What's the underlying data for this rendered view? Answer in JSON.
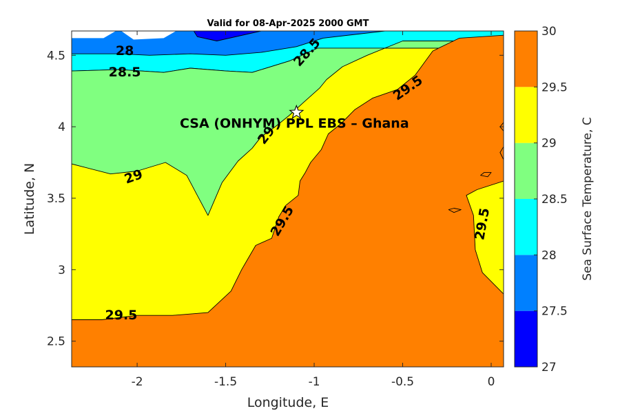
{
  "chart_data": {
    "type": "contour",
    "title": "Valid for 08-Apr-2025 2000 GMT",
    "xlabel": "Longitude, E",
    "ylabel": "Latitude, N",
    "xlim": [
      -2.37,
      0.07
    ],
    "ylim": [
      2.32,
      4.67
    ],
    "xticks": [
      "-2",
      "-1.5",
      "-1",
      "-0.5",
      "0"
    ],
    "xtick_values": [
      -2,
      -1.5,
      -1,
      -0.5,
      0
    ],
    "yticks": [
      "2.5",
      "3",
      "3.5",
      "4",
      "4.5"
    ],
    "ytick_values": [
      2.5,
      3,
      3.5,
      4,
      4.5
    ],
    "colorbar": {
      "label": "Sea Surface Temperature, C",
      "ticks": [
        "27",
        "27.5",
        "28",
        "28.5",
        "29",
        "29.5",
        "30"
      ],
      "tick_values": [
        27,
        27.5,
        28,
        28.5,
        29,
        29.5,
        30
      ],
      "levels": [
        {
          "min": 27.0,
          "max": 27.5,
          "color": "#0000ff"
        },
        {
          "min": 27.5,
          "max": 28.0,
          "color": "#0080ff"
        },
        {
          "min": 28.0,
          "max": 28.5,
          "color": "#00ffff"
        },
        {
          "min": 28.5,
          "max": 29.0,
          "color": "#80ff80"
        },
        {
          "min": 29.0,
          "max": 29.5,
          "color": "#ffff00"
        },
        {
          "min": 29.5,
          "max": 30.0,
          "color": "#ff8000"
        }
      ]
    },
    "contour_labels": [
      {
        "text": "28",
        "lon": -2.07,
        "lat": 4.53,
        "angle": 0
      },
      {
        "text": "28.5",
        "lon": -2.07,
        "lat": 4.38,
        "angle": 0
      },
      {
        "text": "28.5",
        "lon": -1.04,
        "lat": 4.52,
        "angle": -48
      },
      {
        "text": "29.5",
        "lon": -0.47,
        "lat": 4.27,
        "angle": -35
      },
      {
        "text": "29",
        "lon": -1.27,
        "lat": 3.94,
        "angle": -52
      },
      {
        "text": "29",
        "lon": -2.02,
        "lat": 3.65,
        "angle": -20
      },
      {
        "text": "29.5",
        "lon": -1.18,
        "lat": 3.34,
        "angle": -60
      },
      {
        "text": "29.5",
        "lon": -2.09,
        "lat": 2.68,
        "angle": 0
      },
      {
        "text": "29.5",
        "lon": -0.05,
        "lat": 3.32,
        "angle": -80
      }
    ],
    "site": {
      "name": "CSA (ONHYM) PPL EBS  – Ghana",
      "lon": -1.1,
      "lat": 4.1
    },
    "regions": [
      {
        "level": 28.0,
        "color": "#00ffff",
        "points": [
          [
            -2.37,
            4.67
          ],
          [
            0.07,
            4.67
          ],
          [
            0.07,
            4.55
          ],
          [
            -0.98,
            4.55
          ],
          [
            -1.14,
            4.46
          ],
          [
            -1.35,
            4.38
          ],
          [
            -1.5,
            4.39
          ],
          [
            -1.7,
            4.41
          ],
          [
            -1.85,
            4.38
          ],
          [
            -2.1,
            4.4
          ],
          [
            -2.37,
            4.39
          ]
        ]
      },
      {
        "level": 27.5,
        "color": "#0080ff",
        "points": [
          [
            -2.37,
            4.67
          ],
          [
            -0.6,
            4.67
          ],
          [
            -0.95,
            4.62
          ],
          [
            -1.1,
            4.56
          ],
          [
            -1.3,
            4.52
          ],
          [
            -1.5,
            4.5
          ],
          [
            -1.7,
            4.51
          ],
          [
            -1.93,
            4.5
          ],
          [
            -2.1,
            4.51
          ],
          [
            -2.37,
            4.51
          ]
        ]
      },
      {
        "level": 27.0,
        "color": "#0000ff",
        "points": [
          [
            -1.68,
            4.67
          ],
          [
            -1.3,
            4.67
          ],
          [
            -1.55,
            4.6
          ],
          [
            -1.66,
            4.63
          ]
        ]
      },
      {
        "level": 0,
        "color": "#ffffff",
        "points": [
          [
            -2.37,
            4.67
          ],
          [
            -2.12,
            4.67
          ],
          [
            -2.19,
            4.62
          ],
          [
            -2.37,
            4.62
          ]
        ]
      },
      {
        "level": 0,
        "color": "#ffffff",
        "points": [
          [
            -2.09,
            4.67
          ],
          [
            -1.78,
            4.67
          ],
          [
            -1.85,
            4.62
          ],
          [
            -2.02,
            4.61
          ]
        ]
      },
      {
        "level": 28.5,
        "color": "#80ff80",
        "points": [
          [
            -2.37,
            4.39
          ],
          [
            -2.1,
            4.4
          ],
          [
            -1.85,
            4.38
          ],
          [
            -1.7,
            4.41
          ],
          [
            -1.5,
            4.39
          ],
          [
            -1.35,
            4.38
          ],
          [
            -1.14,
            4.46
          ],
          [
            -0.98,
            4.55
          ],
          [
            0.07,
            4.55
          ],
          [
            0.07,
            4.6
          ],
          [
            -0.5,
            4.6
          ],
          [
            -0.7,
            4.5
          ],
          [
            -0.84,
            4.42
          ],
          [
            -0.93,
            4.33
          ],
          [
            -0.97,
            4.27
          ],
          [
            -1.06,
            4.17
          ],
          [
            -1.14,
            4.08
          ],
          [
            -1.22,
            4.0
          ],
          [
            -1.3,
            3.93
          ],
          [
            -1.35,
            3.85
          ],
          [
            -1.43,
            3.76
          ],
          [
            -1.52,
            3.61
          ],
          [
            -1.6,
            3.38
          ],
          [
            -1.66,
            3.52
          ],
          [
            -1.72,
            3.66
          ],
          [
            -1.84,
            3.75
          ],
          [
            -2.0,
            3.69
          ],
          [
            -2.15,
            3.67
          ],
          [
            -2.37,
            3.74
          ]
        ]
      },
      {
        "level": 29.5,
        "color": "#ff8000",
        "points": [
          [
            -2.37,
            2.32
          ],
          [
            0.07,
            2.32
          ],
          [
            0.07,
            2.83
          ],
          [
            -0.05,
            2.98
          ],
          [
            -0.09,
            3.14
          ],
          [
            -0.1,
            3.38
          ],
          [
            -0.14,
            3.52
          ],
          [
            -0.08,
            3.56
          ],
          [
            0.07,
            3.62
          ],
          [
            0.07,
            4.64
          ],
          [
            -0.18,
            4.62
          ],
          [
            -0.33,
            4.53
          ],
          [
            -0.43,
            4.36
          ],
          [
            -0.53,
            4.26
          ],
          [
            -0.67,
            4.2
          ],
          [
            -0.77,
            4.12
          ],
          [
            -0.85,
            4.02
          ],
          [
            -0.92,
            3.95
          ],
          [
            -0.96,
            3.84
          ],
          [
            -1.02,
            3.75
          ],
          [
            -1.05,
            3.68
          ],
          [
            -1.08,
            3.62
          ],
          [
            -1.09,
            3.52
          ],
          [
            -1.16,
            3.45
          ],
          [
            -1.2,
            3.37
          ],
          [
            -1.24,
            3.22
          ],
          [
            -1.33,
            3.17
          ],
          [
            -1.41,
            3.0
          ],
          [
            -1.47,
            2.85
          ],
          [
            -1.6,
            2.7
          ],
          [
            -1.8,
            2.68
          ],
          [
            -2.0,
            2.68
          ],
          [
            -2.2,
            2.65
          ],
          [
            -2.37,
            2.65
          ]
        ]
      },
      {
        "level": 29.5,
        "color": "#ff8000",
        "points": [
          [
            -0.02,
            3.65
          ],
          [
            0.0,
            3.68
          ],
          [
            -0.04,
            3.68
          ],
          [
            -0.06,
            3.66
          ]
        ]
      },
      {
        "level": 29.5,
        "color": "#ff8000",
        "points": [
          [
            -0.21,
            3.4
          ],
          [
            -0.17,
            3.42
          ],
          [
            -0.21,
            3.43
          ],
          [
            -0.24,
            3.42
          ]
        ]
      },
      {
        "level": 29.5,
        "color": "#ff8000",
        "points": [
          [
            0.07,
            3.77
          ],
          [
            0.05,
            3.82
          ],
          [
            0.07,
            3.86
          ]
        ]
      },
      {
        "level": 29.5,
        "color": "#ff8000",
        "points": [
          [
            0.07,
            3.97
          ],
          [
            0.05,
            4.0
          ],
          [
            0.07,
            4.03
          ]
        ]
      }
    ]
  }
}
